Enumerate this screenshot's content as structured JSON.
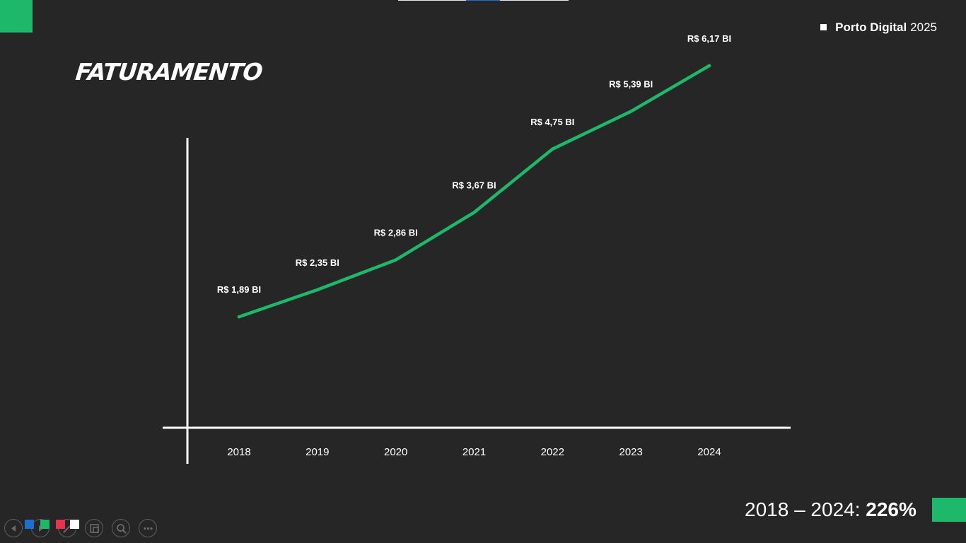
{
  "header": {
    "brand_name": "Porto Digital",
    "brand_year": "2025"
  },
  "slide": {
    "title": "FATURAMENTO"
  },
  "summary": {
    "period": "2018 – 2024: ",
    "growth": "226%"
  },
  "colors": {
    "background": "#262626",
    "accent_green": "#1db86a",
    "axis": "#ffffff",
    "text": "#ffffff",
    "strip_blue": "#1a6fd0"
  },
  "chart_data": {
    "type": "line",
    "title": "",
    "xlabel": "",
    "ylabel": "",
    "categories": [
      "2018",
      "2019",
      "2020",
      "2021",
      "2022",
      "2023",
      "2024"
    ],
    "values": [
      1.89,
      2.35,
      2.86,
      3.67,
      4.75,
      5.39,
      6.17
    ],
    "data_labels": [
      "R$ 1,89 BI",
      "R$ 2,35 BI",
      "R$ 2,86 BI",
      "R$ 3,67 BI",
      "R$ 4,75 BI",
      "R$ 5,39 BI",
      "R$ 6,17 BI"
    ],
    "unit": "R$ BI",
    "ylim": [
      0,
      7
    ],
    "grid": false,
    "legend": "none",
    "color": "#1db86a"
  },
  "toolbar": {
    "icons": [
      "previous-icon",
      "next-icon",
      "pen-icon",
      "slides-icon",
      "zoom-icon",
      "more-icon"
    ]
  }
}
